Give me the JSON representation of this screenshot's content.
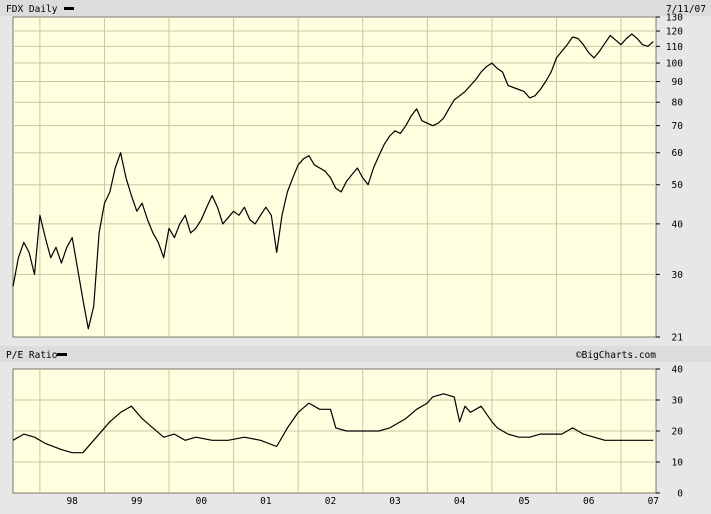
{
  "chart_data": [
    {
      "type": "line",
      "title": "FDX Daily",
      "date_label": "7/11/07",
      "scale": "log",
      "grid": true,
      "ylim": [
        21,
        130
      ],
      "y_ticks": [
        130,
        120,
        110,
        100,
        90,
        80,
        70,
        60,
        50,
        40,
        30,
        21
      ],
      "x_ticks": [
        "98",
        "99",
        "00",
        "01",
        "02",
        "03",
        "04",
        "05",
        "06",
        "07"
      ],
      "series": [
        {
          "name": "FDX Daily",
          "color": "#000000",
          "points": [
            [
              "1997-08",
              28
            ],
            [
              "1997-09",
              33
            ],
            [
              "1997-10",
              36
            ],
            [
              "1997-11",
              34
            ],
            [
              "1997-12",
              30
            ],
            [
              "1998-01",
              42
            ],
            [
              "1998-02",
              37
            ],
            [
              "1998-03",
              33
            ],
            [
              "1998-04",
              35
            ],
            [
              "1998-05",
              32
            ],
            [
              "1998-06",
              35
            ],
            [
              "1998-07",
              37
            ],
            [
              "1998-08",
              31
            ],
            [
              "1998-09",
              26
            ],
            [
              "1998-10",
              22
            ],
            [
              "1998-11",
              25
            ],
            [
              "1998-12",
              38
            ],
            [
              "1999-01",
              45
            ],
            [
              "1999-02",
              48
            ],
            [
              "1999-03",
              55
            ],
            [
              "1999-04",
              60
            ],
            [
              "1999-05",
              52
            ],
            [
              "1999-06",
              47
            ],
            [
              "1999-07",
              43
            ],
            [
              "1999-08",
              45
            ],
            [
              "1999-09",
              41
            ],
            [
              "1999-10",
              38
            ],
            [
              "1999-11",
              36
            ],
            [
              "1999-12",
              33
            ],
            [
              "2000-01",
              39
            ],
            [
              "2000-02",
              37
            ],
            [
              "2000-03",
              40
            ],
            [
              "2000-04",
              42
            ],
            [
              "2000-05",
              38
            ],
            [
              "2000-06",
              39
            ],
            [
              "2000-07",
              41
            ],
            [
              "2000-08",
              44
            ],
            [
              "2000-09",
              47
            ],
            [
              "2000-10",
              44
            ],
            [
              "2000-11",
              40
            ],
            [
              "2001-01",
              43
            ],
            [
              "2001-02",
              42
            ],
            [
              "2001-03",
              44
            ],
            [
              "2001-04",
              41
            ],
            [
              "2001-05",
              40
            ],
            [
              "2001-06",
              42
            ],
            [
              "2001-07",
              44
            ],
            [
              "2001-08",
              42
            ],
            [
              "2001-09",
              34
            ],
            [
              "2001-10",
              42
            ],
            [
              "2001-11",
              48
            ],
            [
              "2001-12",
              52
            ],
            [
              "2002-01",
              56
            ],
            [
              "2002-02",
              58
            ],
            [
              "2002-03",
              59
            ],
            [
              "2002-04",
              56
            ],
            [
              "2002-05",
              55
            ],
            [
              "2002-06",
              54
            ],
            [
              "2002-07",
              52
            ],
            [
              "2002-08",
              49
            ],
            [
              "2002-09",
              48
            ],
            [
              "2002-10",
              51
            ],
            [
              "2002-11",
              53
            ],
            [
              "2002-12",
              55
            ],
            [
              "2003-01",
              52
            ],
            [
              "2003-02",
              50
            ],
            [
              "2003-03",
              55
            ],
            [
              "2003-04",
              59
            ],
            [
              "2003-05",
              63
            ],
            [
              "2003-06",
              66
            ],
            [
              "2003-07",
              68
            ],
            [
              "2003-08",
              67
            ],
            [
              "2003-09",
              70
            ],
            [
              "2003-10",
              74
            ],
            [
              "2003-11",
              77
            ],
            [
              "2003-12",
              72
            ],
            [
              "2004-01",
              71
            ],
            [
              "2004-02",
              70
            ],
            [
              "2004-03",
              71
            ],
            [
              "2004-04",
              73
            ],
            [
              "2004-05",
              77
            ],
            [
              "2004-06",
              81
            ],
            [
              "2004-07",
              83
            ],
            [
              "2004-08",
              85
            ],
            [
              "2004-09",
              88
            ],
            [
              "2004-10",
              91
            ],
            [
              "2004-11",
              95
            ],
            [
              "2004-12",
              98
            ],
            [
              "2005-01",
              100
            ],
            [
              "2005-02",
              97
            ],
            [
              "2005-03",
              95
            ],
            [
              "2005-04",
              88
            ],
            [
              "2005-05",
              87
            ],
            [
              "2005-06",
              86
            ],
            [
              "2005-07",
              85
            ],
            [
              "2005-08",
              82
            ],
            [
              "2005-09",
              83
            ],
            [
              "2005-10",
              86
            ],
            [
              "2005-11",
              90
            ],
            [
              "2005-12",
              95
            ],
            [
              "2006-01",
              103
            ],
            [
              "2006-02",
              107
            ],
            [
              "2006-03",
              111
            ],
            [
              "2006-04",
              116
            ],
            [
              "2006-05",
              115
            ],
            [
              "2006-06",
              111
            ],
            [
              "2006-07",
              106
            ],
            [
              "2006-08",
              103
            ],
            [
              "2006-09",
              107
            ],
            [
              "2006-10",
              112
            ],
            [
              "2006-11",
              117
            ],
            [
              "2006-12",
              114
            ],
            [
              "2007-01",
              111
            ],
            [
              "2007-02",
              115
            ],
            [
              "2007-03",
              118
            ],
            [
              "2007-04",
              115
            ],
            [
              "2007-05",
              111
            ],
            [
              "2007-06",
              110
            ],
            [
              "2007-07",
              113
            ]
          ]
        }
      ]
    },
    {
      "type": "line",
      "title": "P/E Ratio",
      "watermark": "©BigCharts.com",
      "grid": true,
      "ylim": [
        0,
        40
      ],
      "y_ticks": [
        40,
        30,
        20,
        10,
        0
      ],
      "x_ticks": [
        "98",
        "99",
        "00",
        "01",
        "02",
        "03",
        "04",
        "05",
        "06",
        "07"
      ],
      "series": [
        {
          "name": "P/E Ratio",
          "color": "#000000",
          "points": [
            [
              "1997-08",
              17
            ],
            [
              "1997-10",
              19
            ],
            [
              "1997-12",
              18
            ],
            [
              "1998-02",
              16
            ],
            [
              "1998-05",
              14
            ],
            [
              "1998-07",
              13
            ],
            [
              "1998-09",
              13
            ],
            [
              "1998-11",
              17
            ],
            [
              "1999-02",
              23
            ],
            [
              "1999-04",
              26
            ],
            [
              "1999-06",
              28
            ],
            [
              "1999-08",
              24
            ],
            [
              "1999-10",
              21
            ],
            [
              "1999-12",
              18
            ],
            [
              "2000-02",
              19
            ],
            [
              "2000-04",
              17
            ],
            [
              "2000-06",
              18
            ],
            [
              "2000-09",
              17
            ],
            [
              "2000-12",
              17
            ],
            [
              "2001-03",
              18
            ],
            [
              "2001-06",
              17
            ],
            [
              "2001-09",
              15
            ],
            [
              "2001-11",
              21
            ],
            [
              "2002-01",
              26
            ],
            [
              "2002-03",
              29
            ],
            [
              "2002-05",
              27
            ],
            [
              "2002-07",
              27
            ],
            [
              "2002-08",
              21
            ],
            [
              "2002-10",
              20
            ],
            [
              "2002-12",
              20
            ],
            [
              "2003-02",
              20
            ],
            [
              "2003-04",
              20
            ],
            [
              "2003-06",
              21
            ],
            [
              "2003-09",
              24
            ],
            [
              "2003-11",
              27
            ],
            [
              "2004-01",
              29
            ],
            [
              "2004-02",
              31
            ],
            [
              "2004-04",
              32
            ],
            [
              "2004-06",
              31
            ],
            [
              "2004-07",
              23
            ],
            [
              "2004-08",
              28
            ],
            [
              "2004-09",
              26
            ],
            [
              "2004-11",
              28
            ],
            [
              "2005-01",
              23
            ],
            [
              "2005-02",
              21
            ],
            [
              "2005-04",
              19
            ],
            [
              "2005-06",
              18
            ],
            [
              "2005-08",
              18
            ],
            [
              "2005-10",
              19
            ],
            [
              "2005-12",
              19
            ],
            [
              "2006-02",
              19
            ],
            [
              "2006-04",
              21
            ],
            [
              "2006-06",
              19
            ],
            [
              "2006-08",
              18
            ],
            [
              "2006-10",
              17
            ],
            [
              "2006-12",
              17
            ],
            [
              "2007-02",
              17
            ],
            [
              "2007-04",
              17
            ],
            [
              "2007-07",
              17
            ]
          ]
        }
      ]
    }
  ]
}
